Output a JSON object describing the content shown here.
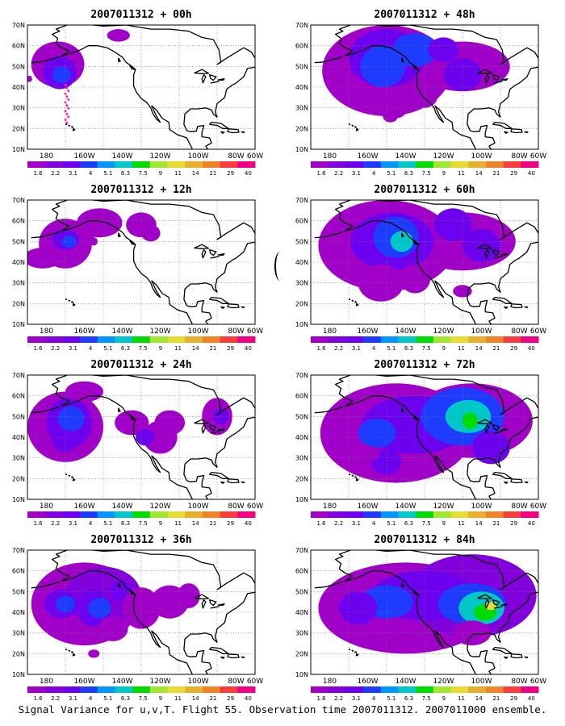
{
  "caption": "Signal Variance for u,v,T. Flight 55. Observation time 2007011312. 2007011000 ensemble.",
  "colorbar": {
    "labels": [
      "1.6",
      "2.2",
      "3.1",
      "4",
      "5.1",
      "6.3",
      "7.5",
      "9",
      "11",
      "14",
      "21",
      "29",
      "40"
    ],
    "colors": [
      "#a000c8",
      "#8200dc",
      "#6e00f0",
      "#1e3cff",
      "#0096ff",
      "#00c8c8",
      "#00dc00",
      "#a0e632",
      "#e6dc32",
      "#e6af2d",
      "#f08228",
      "#fa3c3c",
      "#f00082"
    ]
  },
  "axes": {
    "x_ticks": [
      "180",
      "160W",
      "140W",
      "120W",
      "100W",
      "80W",
      "60W"
    ],
    "y_ticks": [
      "10N",
      "20N",
      "30N",
      "40N",
      "50N",
      "60N",
      "70N"
    ]
  },
  "panels": [
    {
      "title": "2007011312 + 00h",
      "col": 0,
      "row": 0,
      "level": 0
    },
    {
      "title": "2007011312 + 12h",
      "col": 0,
      "row": 1,
      "level": 1
    },
    {
      "title": "2007011312 + 24h",
      "col": 0,
      "row": 2,
      "level": 2
    },
    {
      "title": "2007011312 + 36h",
      "col": 0,
      "row": 3,
      "level": 3
    },
    {
      "title": "2007011312 + 48h",
      "col": 1,
      "row": 0,
      "level": 4
    },
    {
      "title": "2007011312 + 60h",
      "col": 1,
      "row": 1,
      "level": 5
    },
    {
      "title": "2007011312 + 72h",
      "col": 1,
      "row": 2,
      "level": 6
    },
    {
      "title": "2007011312 + 84h",
      "col": 1,
      "row": 3,
      "level": 7
    }
  ]
}
